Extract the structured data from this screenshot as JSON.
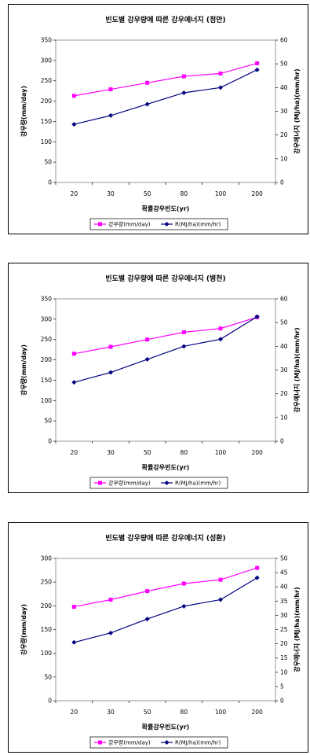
{
  "charts": [
    {
      "title": "빈도별 강우량에 따른 강우에너지 (정안)",
      "xlabel": "확률강우빈도(yr)",
      "ylabel_left": "강우량(mm/day)",
      "ylabel_right": "강우에너지 (MJ/ha)(mm/hr)",
      "categories": [
        "20",
        "30",
        "50",
        "80",
        "100",
        "200"
      ],
      "yticks_left": [
        "0",
        "50",
        "100",
        "150",
        "200",
        "250",
        "300",
        "350"
      ],
      "yticks_right": [
        "0",
        "10",
        "20",
        "30",
        "40",
        "50",
        "60"
      ],
      "legend": [
        "강우량(mm/day)",
        "R(MJ/ha)(mm/hr)"
      ]
    },
    {
      "title": "빈도별 강우량에 따른 강우에너지 (병천)",
      "xlabel": "확률강우빈도(yr)",
      "ylabel_left": "강우량(mm/day)",
      "ylabel_right": "강우에너지 (MJ/ha)(mm/hr)",
      "categories": [
        "20",
        "30",
        "50",
        "80",
        "100",
        "200"
      ],
      "yticks_left": [
        "0",
        "50",
        "100",
        "150",
        "200",
        "250",
        "300",
        "350"
      ],
      "yticks_right": [
        "0",
        "10",
        "20",
        "30",
        "40",
        "50",
        "60"
      ],
      "legend": [
        "강우량(mm/day)",
        "R(MJ/ha)(mm/hr)"
      ]
    },
    {
      "title": "빈도별 강우량에 따른 강우에너지 (성환)",
      "xlabel": "확률강우빈도(yr)",
      "ylabel_left": "강우량(mm/day)",
      "ylabel_right": "강우에너지 (MJ/ha)(mm/hr)",
      "categories": [
        "20",
        "30",
        "50",
        "80",
        "100",
        "200"
      ],
      "yticks_left": [
        "0",
        "50",
        "100",
        "150",
        "200",
        "250",
        "300"
      ],
      "yticks_right": [
        "0",
        "5",
        "10",
        "15",
        "20",
        "25",
        "30",
        "35",
        "40",
        "45",
        "50"
      ],
      "legend": [
        "강우량(mm/day)",
        "R(MJ/ha)(mm/hr)"
      ]
    }
  ],
  "colors": {
    "rainfall": "#ff00ff",
    "energy": "#000080"
  },
  "chart_data": [
    {
      "type": "line",
      "title": "빈도별 강우량에 따른 강우에너지 (정안)",
      "xlabel": "확률강우빈도(yr)",
      "ylabel": "강우량(mm/day)",
      "y2label": "강우에너지 (MJ/ha)(mm/hr)",
      "categories": [
        "20",
        "30",
        "50",
        "80",
        "100",
        "200"
      ],
      "ylim": [
        0,
        350
      ],
      "y2lim": [
        0,
        60
      ],
      "legend_position": "bottom",
      "series": [
        {
          "name": "강우량(mm/day)",
          "axis": "left",
          "values": [
            213,
            229,
            245,
            261,
            268,
            293
          ]
        },
        {
          "name": "R(MJ/ha)(mm/hr)",
          "axis": "right",
          "values": [
            24.5,
            28.2,
            33,
            37.8,
            40,
            47.5
          ]
        }
      ]
    },
    {
      "type": "line",
      "title": "빈도별 강우량에 따른 강우에너지 (병천)",
      "xlabel": "확률강우빈도(yr)",
      "ylabel": "강우량(mm/day)",
      "y2label": "강우에너지 (MJ/ha)(mm/hr)",
      "categories": [
        "20",
        "30",
        "50",
        "80",
        "100",
        "200"
      ],
      "ylim": [
        0,
        350
      ],
      "y2lim": [
        0,
        60
      ],
      "legend_position": "bottom",
      "series": [
        {
          "name": "강우량(mm/day)",
          "axis": "left",
          "values": [
            215,
            232,
            250,
            268,
            277,
            305
          ]
        },
        {
          "name": "R(MJ/ha)(mm/hr)",
          "axis": "right",
          "values": [
            24.8,
            29,
            34.5,
            40,
            43,
            52.5
          ]
        }
      ]
    },
    {
      "type": "line",
      "title": "빈도별 강우량에 따른 강우에너지 (성환)",
      "xlabel": "확률강우빈도(yr)",
      "ylabel": "강우량(mm/day)",
      "y2label": "강우에너지 (MJ/ha)(mm/hr)",
      "categories": [
        "20",
        "30",
        "50",
        "80",
        "100",
        "200"
      ],
      "ylim": [
        0,
        300
      ],
      "y2lim": [
        0,
        50
      ],
      "legend_position": "bottom",
      "series": [
        {
          "name": "강우량(mm/day)",
          "axis": "left",
          "values": [
            198,
            213,
            231,
            247,
            255,
            280
          ]
        },
        {
          "name": "R(MJ/ha)(mm/hr)",
          "axis": "right",
          "values": [
            20.5,
            23.8,
            28.7,
            33.2,
            35.5,
            43.2
          ]
        }
      ]
    }
  ]
}
